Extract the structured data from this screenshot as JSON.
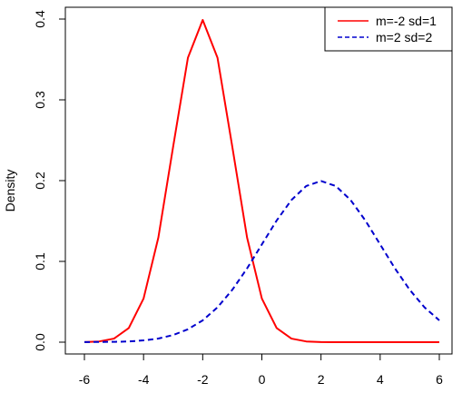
{
  "chart_data": {
    "type": "line",
    "title": "",
    "xlabel": "",
    "ylabel": "Density",
    "xlim": [
      -6,
      6
    ],
    "ylim": [
      0,
      0.4
    ],
    "x_ticks": [
      -6,
      -4,
      -2,
      0,
      2,
      4,
      6
    ],
    "y_ticks": [
      0.0,
      0.1,
      0.2,
      0.3,
      0.4
    ],
    "y_tick_labels": [
      "0.0",
      "0.1",
      "0.2",
      "0.3",
      "0.4"
    ],
    "legend_position": "top-right",
    "grid": false,
    "series": [
      {
        "name": "m=-2 sd=1",
        "color": "#ff0000",
        "line_style": "solid",
        "x": [
          -6,
          -5.5,
          -5,
          -4.5,
          -4,
          -3.5,
          -3,
          -2.5,
          -2,
          -1.5,
          -1,
          -0.5,
          0,
          0.5,
          1,
          1.5,
          2,
          2.5,
          3,
          3.5,
          4,
          4.5,
          5,
          5.5,
          6
        ],
        "y": [
          0.0001,
          0.0009,
          0.0044,
          0.0175,
          0.054,
          0.1295,
          0.242,
          0.3521,
          0.3989,
          0.3521,
          0.242,
          0.1295,
          0.054,
          0.0175,
          0.0044,
          0.0009,
          0.0001,
          0.0,
          0.0,
          0.0,
          0.0,
          0.0,
          0.0,
          0.0,
          0.0
        ]
      },
      {
        "name": "m=2 sd=2",
        "color": "#0000cd",
        "line_style": "dashed",
        "x": [
          -6,
          -5.5,
          -5,
          -4.5,
          -4,
          -3.5,
          -3,
          -2.5,
          -2,
          -1.5,
          -1,
          -0.5,
          0,
          0.5,
          1,
          1.5,
          2,
          2.5,
          3,
          3.5,
          4,
          4.5,
          5,
          5.5,
          6
        ],
        "y": [
          0.0001,
          0.0003,
          0.0004,
          0.0009,
          0.0022,
          0.0045,
          0.0088,
          0.016,
          0.027,
          0.0431,
          0.0648,
          0.0913,
          0.121,
          0.1506,
          0.176,
          0.1933,
          0.1995,
          0.1933,
          0.176,
          0.1506,
          0.121,
          0.0913,
          0.0648,
          0.0431,
          0.027
        ]
      }
    ]
  }
}
